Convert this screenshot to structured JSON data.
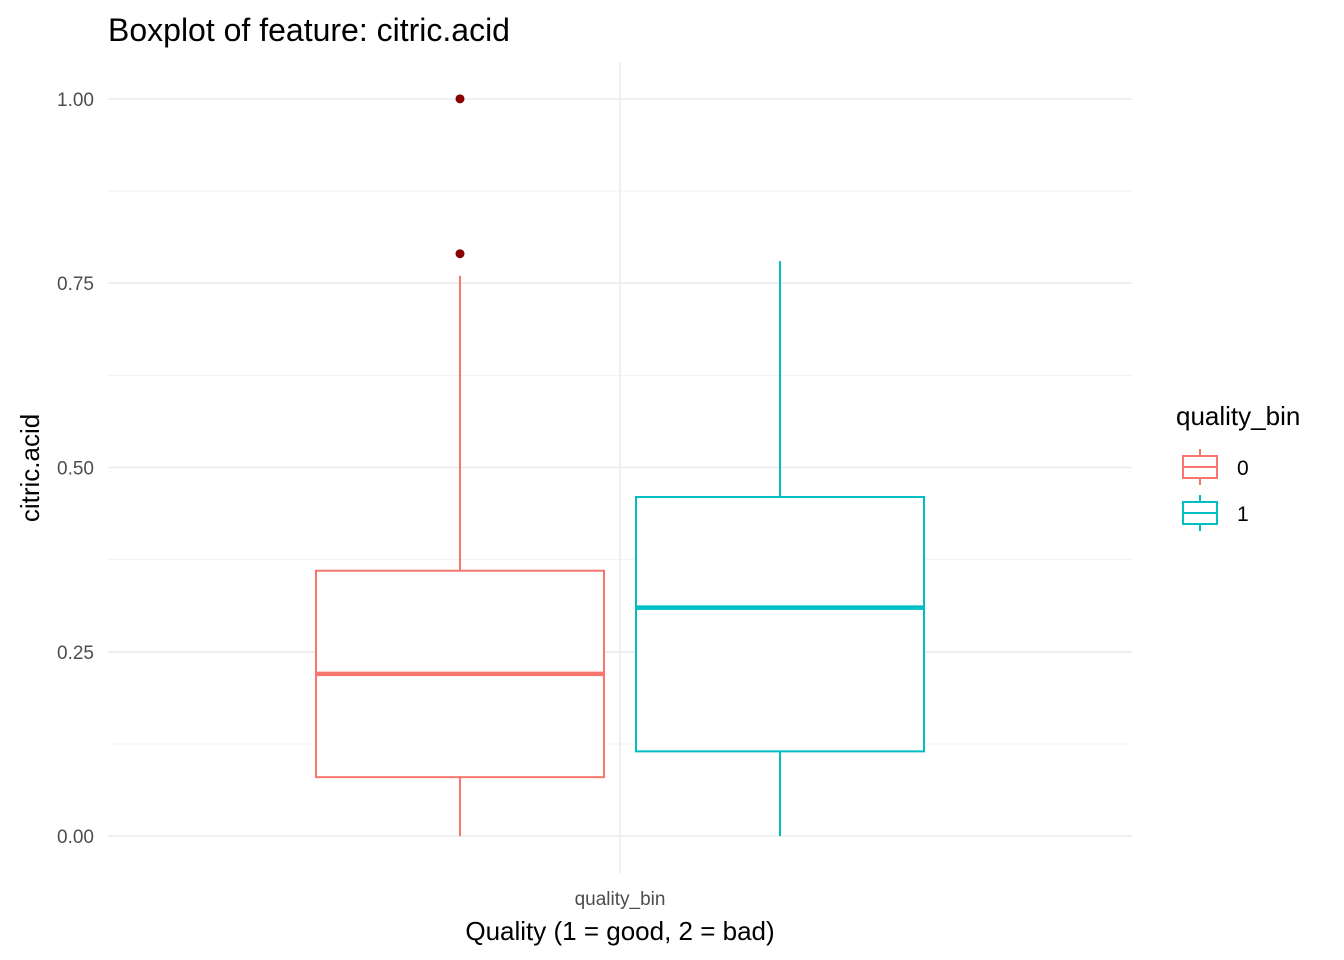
{
  "chart_data": {
    "type": "boxplot",
    "title": "Boxplot of feature: citric.acid",
    "xlabel": "Quality (1 = good, 2 = bad)",
    "ylabel": "citric.acid",
    "x_tick_label": "quality_bin",
    "ylim": [
      -0.05,
      1.05
    ],
    "y_ticks": [
      0.0,
      0.25,
      0.5,
      0.75,
      1.0
    ],
    "y_tick_labels": [
      "0.00",
      "0.25",
      "0.50",
      "0.75",
      "1.00"
    ],
    "grid": true,
    "legend": {
      "title": "quality_bin",
      "placement": "right",
      "entries": [
        "0",
        "1"
      ]
    },
    "series": [
      {
        "name": "0",
        "color": "#F8766D",
        "min": 0.0,
        "q1": 0.08,
        "median": 0.22,
        "q3": 0.36,
        "max": 0.76,
        "outliers": [
          0.79,
          1.0
        ]
      },
      {
        "name": "1",
        "color": "#00BFC4",
        "min": 0.0,
        "q1": 0.115,
        "median": 0.31,
        "q3": 0.46,
        "max": 0.78,
        "outliers": []
      }
    ],
    "outlier_color": "#8B0000"
  }
}
